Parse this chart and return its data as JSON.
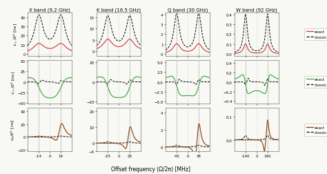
{
  "col_titles": [
    "X band (9.2 GHz)",
    "K band (16.5 GHz)",
    "Q band (30 GHz)",
    "W band (92 GHz)"
  ],
  "xlabel": "Offset frequency (Ω/2π) [MHz]",
  "bands": [
    {
      "name": "X",
      "larmor": 14.0,
      "xlim": [
        -28,
        28
      ],
      "xticks": [
        -14,
        0,
        14
      ],
      "gamma_exact": 3.5,
      "gamma_classical": 2.0
    },
    {
      "name": "K",
      "larmor": 25.0,
      "xlim": [
        -50,
        50
      ],
      "xticks": [
        -25,
        0,
        25
      ],
      "gamma_exact": 5.0,
      "gamma_classical": 3.0
    },
    {
      "name": "Q",
      "larmor": 45.0,
      "xlim": [
        -90,
        90
      ],
      "xticks": [
        -45,
        0,
        45
      ],
      "gamma_exact": 7.0,
      "gamma_classical": 4.0
    },
    {
      "name": "W",
      "larmor": 140.0,
      "xlim": [
        -280,
        280
      ],
      "xticks": [
        -140,
        0,
        140
      ],
      "gamma_exact": 12.0,
      "gamma_classical": 8.0
    }
  ],
  "ylims": [
    [
      [
        -2,
        45
      ],
      [
        -2,
        17
      ],
      [
        -0.2,
        4.2
      ],
      [
        -0.02,
        0.42
      ]
    ],
    [
      [
        -52,
        52
      ],
      [
        -22,
        22
      ],
      [
        -5.5,
        5.5
      ],
      [
        -0.45,
        0.45
      ]
    ],
    [
      [
        -22,
        45
      ],
      [
        -5,
        22
      ],
      [
        -0.5,
        4.5
      ],
      [
        -0.05,
        0.14
      ]
    ]
  ],
  "yticks": [
    [
      [
        0,
        10,
        20,
        30,
        40
      ],
      [
        0,
        5,
        10,
        15
      ],
      [
        0,
        1,
        2,
        3,
        4
      ],
      [
        0.0,
        0.1,
        0.2,
        0.3,
        0.4
      ]
    ],
    [
      [
        -50,
        -25,
        0,
        25,
        50
      ],
      [
        -20,
        0,
        20
      ],
      [
        -5.0,
        -2.5,
        0,
        2.5,
        5.0
      ],
      [
        -0.4,
        -0.2,
        0,
        0.2,
        0.4
      ]
    ],
    [
      [
        -20,
        0,
        20,
        40
      ],
      [
        -5,
        0,
        10,
        20
      ],
      [
        0,
        2,
        4
      ],
      [
        0.0,
        0.1
      ]
    ]
  ],
  "row_colors": [
    "#d04040",
    "#40a840",
    "#8b4513"
  ],
  "classical_color": "#111111",
  "bg_color": "#f8f8f4"
}
